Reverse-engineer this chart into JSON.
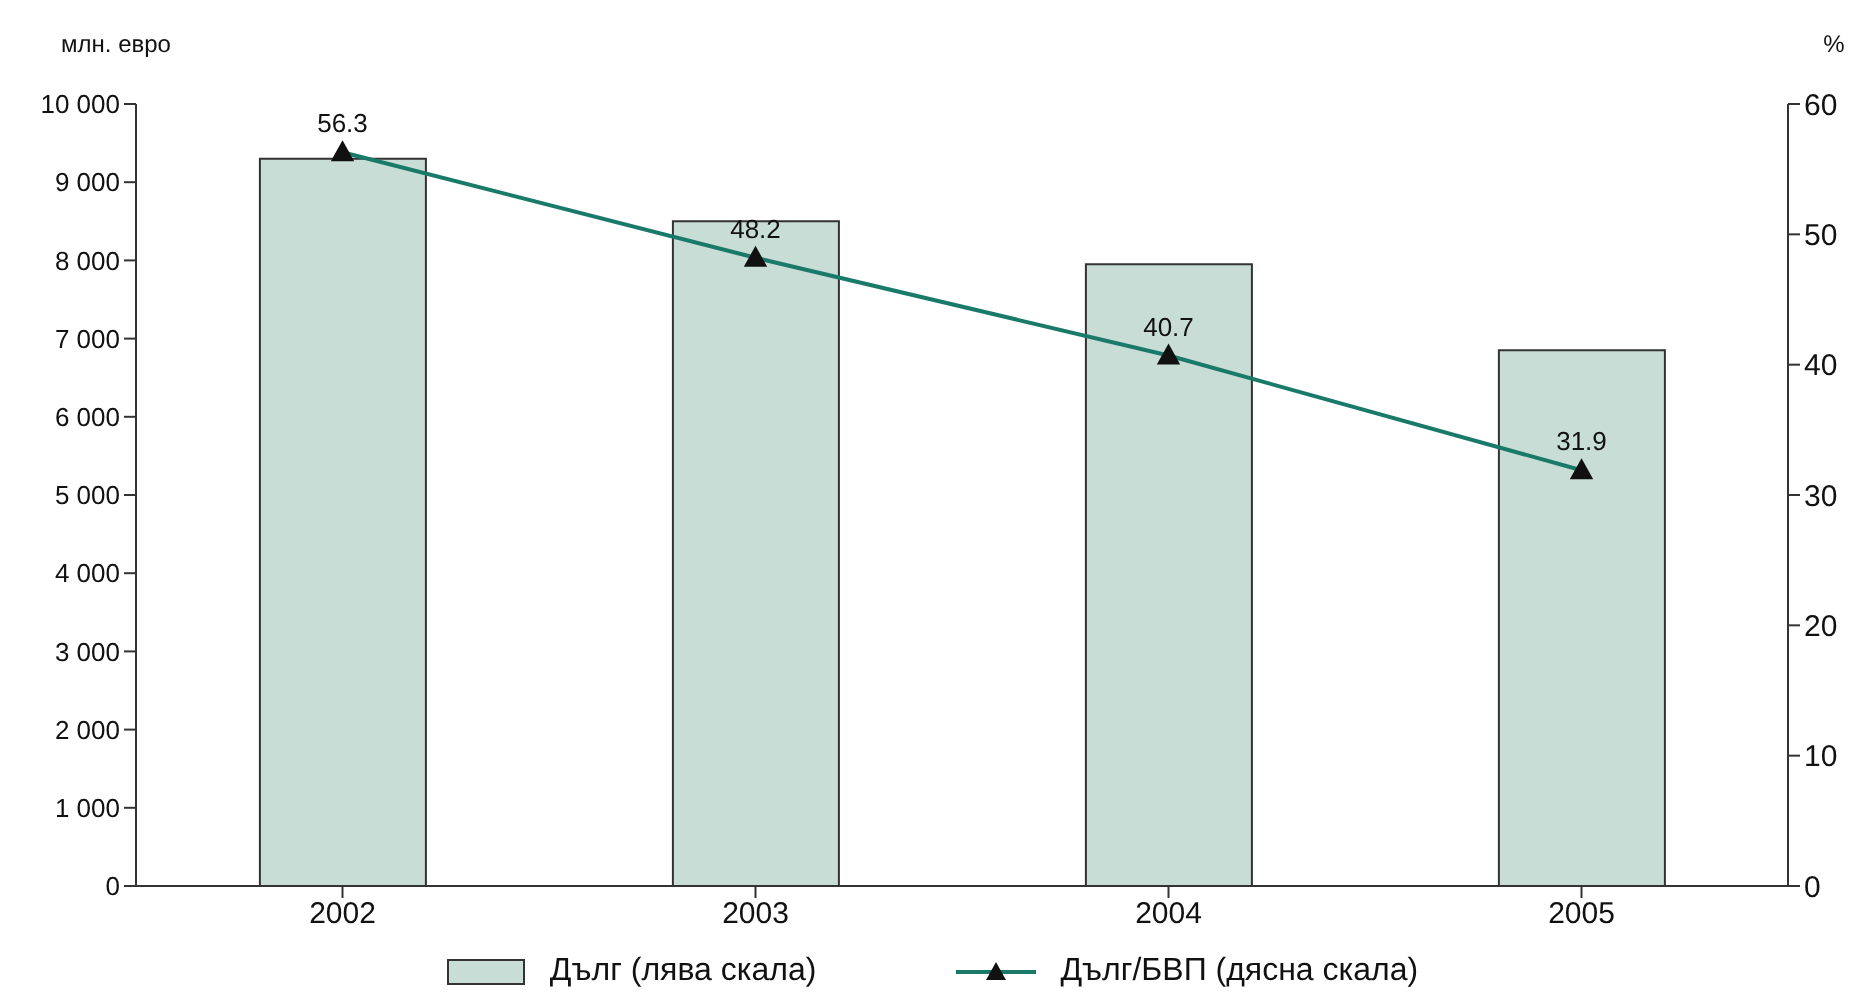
{
  "chart_data": {
    "type": "bar",
    "categories": [
      "2002",
      "2003",
      "2004",
      "2005"
    ],
    "ylabel": "млн. евро",
    "y2label": "%",
    "ylim": [
      0,
      10000
    ],
    "yticks": [
      {
        "value": 0,
        "label": "0"
      },
      {
        "value": 1000,
        "label": "1 000"
      },
      {
        "value": 2000,
        "label": "2 000"
      },
      {
        "value": 3000,
        "label": "3 000"
      },
      {
        "value": 4000,
        "label": "4 000"
      },
      {
        "value": 5000,
        "label": "5 000"
      },
      {
        "value": 6000,
        "label": "6 000"
      },
      {
        "value": 7000,
        "label": "7 000"
      },
      {
        "value": 8000,
        "label": "8 000"
      },
      {
        "value": 9000,
        "label": "9 000"
      },
      {
        "value": 10000,
        "label": "10 000"
      }
    ],
    "y2lim": [
      0,
      60
    ],
    "y2ticks": [
      0,
      10,
      20,
      30,
      40,
      50,
      60
    ],
    "legend": "bottom",
    "grid": false,
    "series": [
      {
        "name": "Дълг (лява скала)",
        "color": "#c8ddd5",
        "values": [
          9300,
          8500,
          7950,
          6850
        ]
      },
      {
        "name": "Дълг/БВП (дясна скала)",
        "type": "line",
        "axis": "y2",
        "color": "#1a7a6a",
        "marker": "triangle",
        "values": [
          56.3,
          48.2,
          40.7,
          31.9
        ],
        "value_labels": [
          "56.3",
          "48.2",
          "40.7",
          "31.9"
        ]
      }
    ]
  }
}
